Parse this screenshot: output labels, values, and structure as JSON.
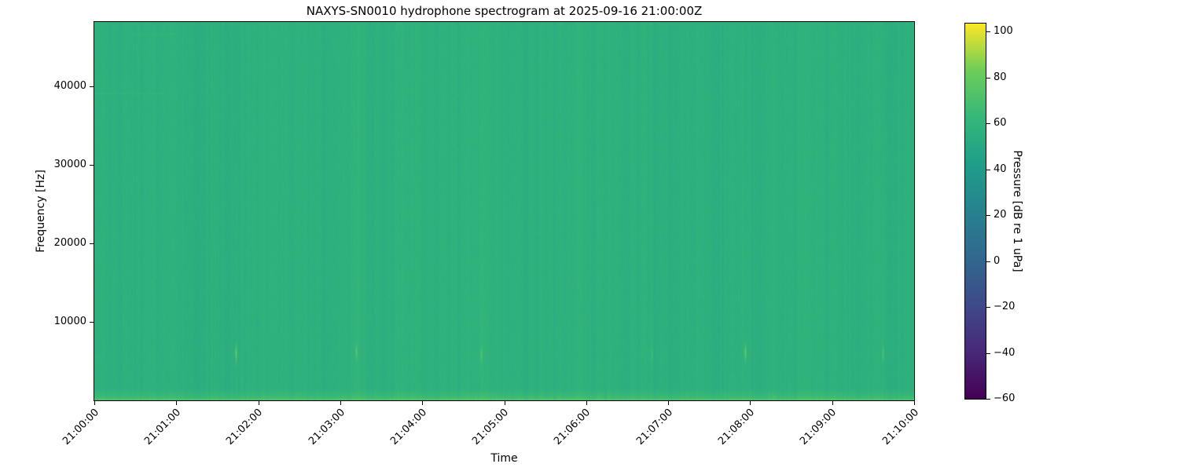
{
  "figure": {
    "title": "NAXYS-SN0010 hydrophone spectrogram at 2025-09-16 21:00:00Z",
    "xlabel": "Time",
    "ylabel": "Frequency [Hz]"
  },
  "colorbar": {
    "label": "Pressure [dB re 1 uPa]",
    "tick_labels": [
      "100",
      "80",
      "60",
      "40",
      "20",
      "0",
      "−20",
      "−40",
      "−60"
    ],
    "tick_values": [
      100,
      80,
      60,
      40,
      20,
      0,
      -20,
      -40,
      -60
    ],
    "colormap": "viridis",
    "stops": [
      "#440154",
      "#482878",
      "#3e4a89",
      "#31688e",
      "#26828e",
      "#1f9e89",
      "#35b779",
      "#6dcd59",
      "#fde725"
    ]
  },
  "chart_data": {
    "type": "heatmap",
    "subtype": "hydrophone spectrogram",
    "title": "NAXYS-SN0010 hydrophone spectrogram at 2025-09-16 21:00:00Z",
    "xlabel": "Time",
    "ylabel": "Frequency [Hz]",
    "x_tick_labels": [
      "21:00:00",
      "21:01:00",
      "21:02:00",
      "21:03:00",
      "21:04:00",
      "21:05:00",
      "21:06:00",
      "21:07:00",
      "21:08:00",
      "21:09:00",
      "21:10:00"
    ],
    "x_range_minutes": [
      0,
      10
    ],
    "y_tick_values_hz": [
      10000,
      20000,
      30000,
      40000
    ],
    "y_tick_labels": [
      "10000",
      "20000",
      "30000",
      "40000"
    ],
    "y_range_hz": [
      0,
      48200
    ],
    "color_scale": {
      "label": "Pressure [dB re 1 uPa]",
      "vmin": -60,
      "vmax": 103.5,
      "ticks": [
        100,
        80,
        60,
        40,
        20,
        0,
        -20,
        -40,
        -60
      ],
      "colormap": "viridis",
      "legend_position": "right"
    },
    "grid": false,
    "content": {
      "background_level_db": 57,
      "striation_amp_db": 2.2,
      "pixel_noise_db": 0.8,
      "low_freq_band": {
        "max_freq_hz": 1400,
        "gain_db": 11,
        "edge_gain_db": 5
      },
      "transients": [
        {
          "time": "21:01:44",
          "t_min": 1.73,
          "freq_hz": 6000,
          "gain_db": 24
        },
        {
          "time": "21:03:12",
          "t_min": 3.19,
          "freq_hz": 6200,
          "gain_db": 15
        },
        {
          "time": "21:04:43",
          "t_min": 4.72,
          "freq_hz": 5900,
          "gain_db": 15
        },
        {
          "time": "21:06:48",
          "t_min": 6.8,
          "freq_hz": 6000,
          "gain_db": 8
        },
        {
          "time": "21:07:56",
          "t_min": 7.94,
          "freq_hz": 6100,
          "gain_db": 24
        },
        {
          "time": "21:09:37",
          "t_min": 9.62,
          "freq_hz": 6000,
          "gain_db": 13
        }
      ],
      "faint_horizontal_streaks": [
        {
          "t_min_range": [
            0.45,
            1.0
          ],
          "freq_hz": 46700,
          "gain_db": 5
        },
        {
          "t_min_range": [
            0.0,
            0.85
          ],
          "freq_hz": 39100,
          "gain_db": 4
        }
      ]
    }
  }
}
